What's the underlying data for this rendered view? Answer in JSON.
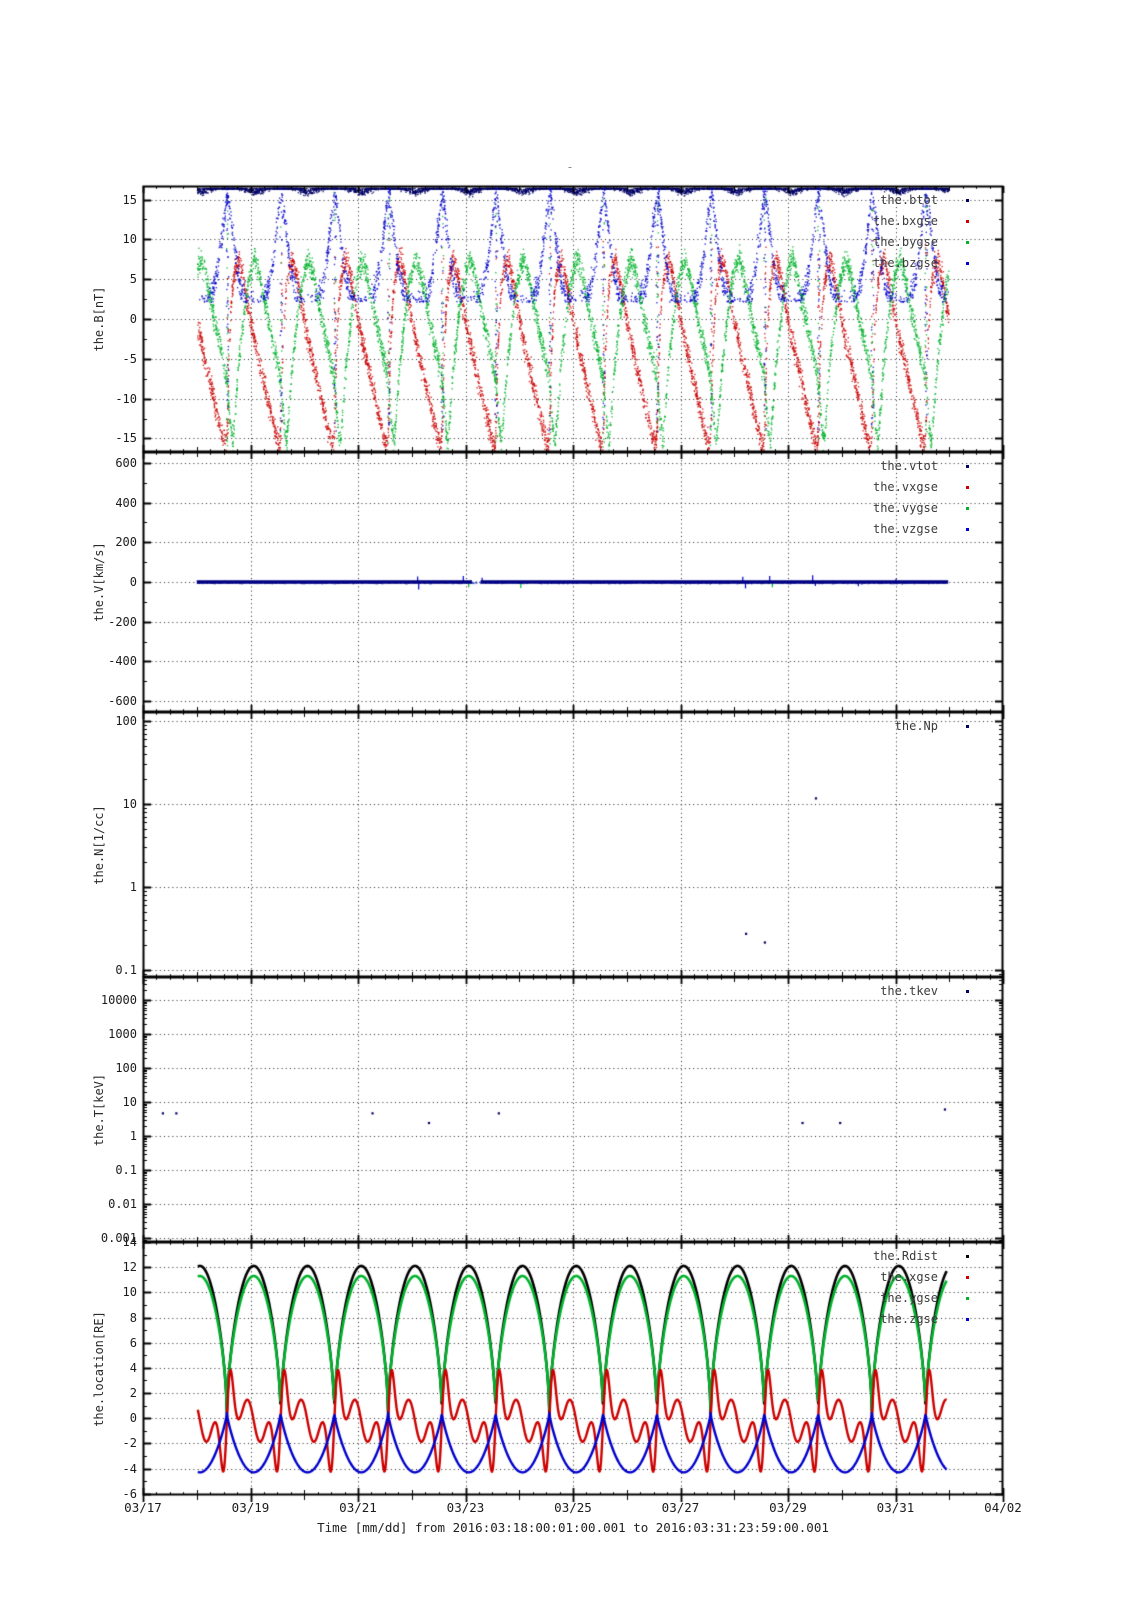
{
  "title": "-",
  "xaxis": {
    "label": "Time [mm/dd]  from 2016:03:18:00:01:00.001  to  2016:03:31:23:59:00.001",
    "ticks": [
      [
        17,
        "03/17"
      ],
      [
        19,
        "03/19"
      ],
      [
        21,
        "03/21"
      ],
      [
        23,
        "03/23"
      ],
      [
        25,
        "03/25"
      ],
      [
        27,
        "03/27"
      ],
      [
        29,
        "03/29"
      ],
      [
        31,
        "03/31"
      ],
      [
        33,
        "04/02"
      ]
    ],
    "day_minor_step": 0.25,
    "range_days": [
      17,
      33
    ]
  },
  "chart_data": {
    "type": "line",
    "layout": "5 stacked time-series panels, shared x-axis, dotted grid",
    "orbit": {
      "perigee_day": 18.56,
      "period_days": 1.0
    },
    "data_time_range_days": [
      18.0,
      31.98
    ],
    "colors": {
      "black": "#000000",
      "navy": "#000066",
      "red": "#cc0000",
      "green": "#00b32c",
      "blue": "#0000cc",
      "grid": "#000000"
    },
    "panels": [
      {
        "name": "magnetic-field",
        "ylabel": "the.B[nT]",
        "yscale": "linear",
        "ylim": [
          -16.7,
          16.7
        ],
        "yticks": [
          [
            15,
            "15"
          ],
          [
            10,
            "10"
          ],
          [
            5,
            "5"
          ],
          [
            0,
            "0"
          ],
          [
            -5,
            "-5"
          ],
          [
            -10,
            "-10"
          ],
          [
            -15,
            "-15"
          ]
        ],
        "yminor_step": 2.5,
        "legend": [
          {
            "label": "the.btot",
            "color": "#000066"
          },
          {
            "label": "the.bxgse",
            "color": "#cc0000"
          },
          {
            "label": "the.bygse",
            "color": "#00b32c"
          },
          {
            "label": "the.bzgse",
            "color": "#0000cc"
          }
        ],
        "series": [
          {
            "type": "scatter",
            "name": "the.btot",
            "color": "#000066",
            "n": 5200,
            "sigma": 0.45,
            "clampTop": true,
            "keypoints": [
              [
                0,
                17.3
              ],
              [
                0.35,
                16.4
              ],
              [
                0.5,
                16.0
              ],
              [
                0.65,
                16.4
              ],
              [
                1,
                17.3
              ]
            ]
          },
          {
            "type": "scatter",
            "name": "the.bxgse",
            "color": "#cc0000",
            "n": 5200,
            "sigma": 1.4,
            "keypoints": [
              [
                0,
                -13
              ],
              [
                0.03,
                -4
              ],
              [
                0.08,
                3
              ],
              [
                0.15,
                6.5
              ],
              [
                0.22,
                7.5
              ],
              [
                0.3,
                5
              ],
              [
                0.4,
                1
              ],
              [
                0.5,
                -2.5
              ],
              [
                0.6,
                -5.5
              ],
              [
                0.7,
                -8.5
              ],
              [
                0.8,
                -11.5
              ],
              [
                0.9,
                -14.5
              ],
              [
                0.97,
                -16
              ],
              [
                1,
                -13
              ]
            ],
            "spray": {
              "width": 0.02,
              "lo": -15,
              "hi": 10,
              "frac": 0.05
            }
          },
          {
            "type": "scatter",
            "name": "the.bygse",
            "color": "#00b32c",
            "n": 5200,
            "sigma": 1.4,
            "keypoints": [
              [
                0,
                -8
              ],
              [
                0.05,
                -13
              ],
              [
                0.1,
                -15.5
              ],
              [
                0.15,
                -11
              ],
              [
                0.2,
                -6
              ],
              [
                0.28,
                -1
              ],
              [
                0.36,
                3.5
              ],
              [
                0.45,
                6.5
              ],
              [
                0.52,
                7.5
              ],
              [
                0.6,
                5.5
              ],
              [
                0.7,
                2
              ],
              [
                0.8,
                -1.5
              ],
              [
                0.9,
                -4.5
              ],
              [
                1,
                -8
              ]
            ],
            "spray": {
              "width": 0.02,
              "lo": -16,
              "hi": 16,
              "frac": 0.06
            }
          },
          {
            "type": "scatter",
            "name": "the.bzgse",
            "color": "#0000cc",
            "n": 4200,
            "sigma": 1.6,
            "minDraw": 2.2,
            "clampTop": true,
            "keypoints": [
              [
                0,
                16
              ],
              [
                0.05,
                13.5
              ],
              [
                0.1,
                10.5
              ],
              [
                0.16,
                7
              ],
              [
                0.24,
                4
              ],
              [
                0.35,
                2
              ],
              [
                0.5,
                1.2
              ],
              [
                0.65,
                2
              ],
              [
                0.76,
                4
              ],
              [
                0.84,
                7
              ],
              [
                0.9,
                10.5
              ],
              [
                0.95,
                13.5
              ],
              [
                1,
                16
              ]
            ],
            "spray": {
              "width": 0.025,
              "lo": -14,
              "hi": 16,
              "frac": 0.1
            }
          }
        ]
      },
      {
        "name": "velocity",
        "ylabel": "the.V[km/s]",
        "yscale": "linear",
        "ylim": [
          -655,
          655
        ],
        "yticks": [
          [
            600,
            "600"
          ],
          [
            400,
            "400"
          ],
          [
            200,
            "200"
          ],
          [
            0,
            "0"
          ],
          [
            -200,
            "-200"
          ],
          [
            -400,
            "-400"
          ],
          [
            -600,
            "-600"
          ]
        ],
        "yminor_step": 100,
        "legend": [
          {
            "label": "the.vtot",
            "color": "#000066"
          },
          {
            "label": "the.vxgse",
            "color": "#cc0000"
          },
          {
            "label": "the.vygse",
            "color": "#00b32c"
          },
          {
            "label": "the.vzgse",
            "color": "#0000cc"
          }
        ],
        "series": [
          {
            "type": "scatter",
            "name": "v-fuzz",
            "color": "#3c50c8",
            "n": 1100,
            "sigma": 5,
            "keypoints": [
              [
                0,
                0
              ],
              [
                1,
                0
              ]
            ]
          },
          {
            "type": "spikes",
            "name": "v-excursions",
            "spikes": [
              [
                22.1,
                28,
                "#0000cc"
              ],
              [
                22.12,
                -38,
                "#0000cc"
              ],
              [
                22.95,
                30,
                "#0000cc"
              ],
              [
                23.05,
                -26,
                "#00b32c"
              ],
              [
                23.3,
                22,
                "#0000cc"
              ],
              [
                24.02,
                -30,
                "#00b32c"
              ],
              [
                28.15,
                26,
                "#0000cc"
              ],
              [
                28.2,
                -32,
                "#0000cc"
              ],
              [
                28.65,
                30,
                "#0000cc"
              ],
              [
                28.7,
                -26,
                "#00b32c"
              ],
              [
                29.45,
                34,
                "#0000cc"
              ],
              [
                29.5,
                -20,
                "#0000cc"
              ],
              [
                30.3,
                -22,
                "#0000cc"
              ],
              [
                31.0,
                16,
                "#0000cc"
              ]
            ]
          },
          {
            "type": "segments",
            "name": "the.vtot-line",
            "color": "#000080",
            "linewidth": 3.4,
            "value": 0,
            "segments": [
              [
                18.0,
                23.12
              ],
              [
                23.28,
                31.98
              ]
            ]
          }
        ]
      },
      {
        "name": "density",
        "ylabel": "the.N[1/cc]",
        "yscale": "log",
        "ylim": [
          0.082,
          128
        ],
        "yticks": [
          [
            100,
            "100"
          ],
          [
            10,
            "10"
          ],
          [
            1,
            "1"
          ],
          [
            0.1,
            "0.1"
          ]
        ],
        "legend": [
          {
            "label": "the.Np",
            "color": "#000066"
          }
        ],
        "series": [
          {
            "type": "points",
            "name": "the.Np",
            "color": "#000066",
            "points": [
              [
                29.5,
                12
              ],
              [
                28.2,
                0.28
              ],
              [
                28.55,
                0.22
              ]
            ]
          }
        ]
      },
      {
        "name": "temperature",
        "yscale": "log",
        "ylabel": "the.T[keV]",
        "ylim": [
          0.00076,
          47900
        ],
        "yticks": [
          [
            10000,
            "10000"
          ],
          [
            1000,
            "1000"
          ],
          [
            100,
            "100"
          ],
          [
            10,
            "10"
          ],
          [
            1,
            "1"
          ],
          [
            0.1,
            "0.1"
          ],
          [
            0.01,
            "0.01"
          ],
          [
            0.001,
            "0.001"
          ]
        ],
        "legend": [
          {
            "label": "the.tkev",
            "color": "#000066"
          }
        ],
        "series": [
          {
            "type": "points",
            "name": "the.tkev",
            "color": "#000066",
            "points": [
              [
                17.35,
                5
              ],
              [
                17.6,
                5
              ],
              [
                21.25,
                5
              ],
              [
                22.3,
                2.6
              ],
              [
                23.6,
                5
              ],
              [
                29.25,
                2.6
              ],
              [
                29.95,
                2.6
              ],
              [
                31.9,
                6.5
              ]
            ]
          }
        ]
      },
      {
        "name": "location",
        "ylabel": "the.location[RE]",
        "yscale": "linear",
        "ylim": [
          -6.1,
          14.0
        ],
        "yticks": [
          [
            14,
            "14"
          ],
          [
            12,
            "12"
          ],
          [
            10,
            "10"
          ],
          [
            8,
            "8"
          ],
          [
            6,
            "6"
          ],
          [
            4,
            "4"
          ],
          [
            2,
            "2"
          ],
          [
            0,
            "0"
          ],
          [
            -2,
            "-2"
          ],
          [
            -4,
            "-4"
          ],
          [
            -6,
            "-6"
          ]
        ],
        "yminor_step": 1,
        "legend": [
          {
            "label": "the.Rdist",
            "color": "#000000"
          },
          {
            "label": "the.xgse",
            "color": "#cc0000"
          },
          {
            "label": "the.ygse",
            "color": "#00b32c"
          },
          {
            "label": "the.zgse",
            "color": "#0000cc"
          }
        ],
        "series": [
          {
            "type": "arc",
            "name": "the.Rdist",
            "color": "#000000",
            "min": 0.4,
            "max": 12.1,
            "pow": 0.62,
            "linewidth": 2.6
          },
          {
            "type": "arc",
            "name": "the.ygse",
            "color": "#00b32c",
            "min": 0.7,
            "max": 11.3,
            "pow": 0.62,
            "linewidth": 2.6
          },
          {
            "type": "kepler-sin",
            "name": "the.xgse",
            "color": "#cc0000",
            "amp": 4.05,
            "offset": -0.2,
            "linewidth": 2.4
          },
          {
            "type": "ushape",
            "name": "the.zgse",
            "color": "#0000cc",
            "top": 0.4,
            "depth": 4.7,
            "pow": 0.8,
            "linewidth": 2.4
          }
        ]
      }
    ]
  }
}
